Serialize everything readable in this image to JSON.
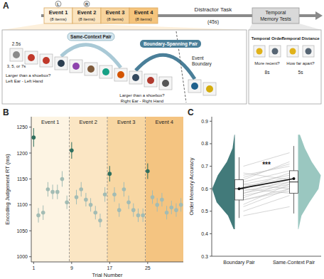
{
  "panel_labels": [
    "A",
    "B",
    "C"
  ],
  "diagram": {
    "timeline": {
      "events": [
        {
          "label": "Event 1",
          "sub": "(8 items)",
          "ear": "L"
        },
        {
          "label": "Event 2",
          "sub": "(8 items)",
          "ear": "R"
        },
        {
          "label": "Event 3",
          "sub": "(8 items)"
        },
        {
          "label": "Event 4",
          "sub": "(8 items)"
        }
      ],
      "distractor": "Distractor Task",
      "distractor_time": "(45s)",
      "tests": [
        "Temporal",
        "Memory Tests"
      ]
    },
    "encoding": {
      "same_context": "Same-Context Pair",
      "boundary_spanning": "Boundary-Spanning Pair",
      "duration": "2.5s",
      "isi": "3, 5, or 7s",
      "question_1": "Larger than a shoebox?",
      "response_1": "Left Ear - Left Hand",
      "boundary": [
        "Event",
        "Boundary"
      ],
      "question_2": "Larger than a shoebox?",
      "response_2": "Right Ear - Right Hand"
    },
    "tests": [
      {
        "title": "Temporal Order",
        "prompt": "More recent?",
        "duration": "8s"
      },
      {
        "title": "Temporal Distance",
        "prompt": "How far apart?",
        "duration": "5s"
      }
    ]
  },
  "chart_data": [
    {
      "type": "scatter",
      "xlabel": "Trial Number",
      "ylabel": "Encoding Judgement RT (ms)",
      "x": [
        1,
        2,
        3,
        4,
        5,
        6,
        7,
        8,
        9,
        10,
        11,
        12,
        13,
        14,
        15,
        16,
        17,
        18,
        19,
        20,
        21,
        22,
        23,
        24,
        25,
        26,
        27,
        28,
        29,
        30,
        31,
        32
      ],
      "values": [
        1230,
        1080,
        1085,
        1130,
        1125,
        1125,
        1150,
        1105,
        1205,
        1115,
        1130,
        1110,
        1100,
        1085,
        1070,
        1120,
        1160,
        1120,
        1090,
        1130,
        1105,
        1090,
        1080,
        1080,
        1165,
        1115,
        1100,
        1110,
        1085,
        1095,
        1090,
        1100
      ],
      "errors": [
        18,
        14,
        14,
        14,
        14,
        14,
        15,
        13,
        16,
        14,
        14,
        13,
        13,
        13,
        13,
        14,
        15,
        14,
        13,
        14,
        13,
        13,
        13,
        13,
        15,
        13,
        13,
        13,
        13,
        13,
        13,
        13
      ],
      "colors": [
        "#2f6f5e",
        "#a3bcb4",
        "#a3bcb4",
        "#a3bcb4",
        "#a3bcb4",
        "#a3bcb4",
        "#a3bcb4",
        "#a3bcb4",
        "#2f6f5e",
        "#a3bcb4",
        "#a3bcb4",
        "#a3bcb4",
        "#a3bcb4",
        "#a3bcb4",
        "#a3bcb4",
        "#a3bcb4",
        "#2f6f5e",
        "#a3bcb4",
        "#a3bcb4",
        "#a3bcb4",
        "#a3bcb4",
        "#a3bcb4",
        "#a3bcb4",
        "#a3bcb4",
        "#2f6f5e",
        "#a3bcb4",
        "#a3bcb4",
        "#a3bcb4",
        "#a3bcb4",
        "#a3bcb4",
        "#a3bcb4",
        "#a3bcb4"
      ],
      "events": [
        {
          "label": "Event 1",
          "start": 0.5,
          "end": 8.5,
          "color": "#fdf4e3"
        },
        {
          "label": "Event 2",
          "start": 8.5,
          "end": 16.5,
          "color": "#fbe6c4"
        },
        {
          "label": "Event 3",
          "start": 16.5,
          "end": 24.5,
          "color": "#f8d7a3"
        },
        {
          "label": "Event 4",
          "start": 24.5,
          "end": 32.5,
          "color": "#f4c481"
        }
      ],
      "xlim": [
        0.5,
        32.5
      ],
      "xticks": [
        1,
        9,
        17,
        25
      ],
      "ylim": [
        990,
        1270
      ],
      "yticks": [
        1000,
        1050,
        1100,
        1150,
        1200,
        1250
      ]
    },
    {
      "type": "box",
      "ylabel": "Order Memory Accuracy",
      "categories": [
        "Boundary Pair",
        "Same-Context Pair"
      ],
      "boxes": [
        {
          "color": "#2e6b6b",
          "min": 0.47,
          "q1": 0.55,
          "median": 0.6,
          "q3": 0.64,
          "max": 0.74,
          "mean": 0.6,
          "violin_density": [
            0.05,
            0.3,
            0.8,
            1,
            0.75,
            0.35,
            0.1,
            0.02
          ]
        },
        {
          "color": "#8fc1b9",
          "min": 0.49,
          "q1": 0.58,
          "median": 0.63,
          "q3": 0.68,
          "max": 0.79,
          "mean": 0.645,
          "violin_density": [
            0.02,
            0.15,
            0.5,
            0.9,
            1,
            0.6,
            0.3,
            0.08
          ]
        }
      ],
      "violin_y": [
        0.42,
        0.48,
        0.54,
        0.6,
        0.66,
        0.72,
        0.78,
        0.84
      ],
      "subjects": [
        [
          0.55,
          0.6
        ],
        [
          0.62,
          0.66
        ],
        [
          0.58,
          0.64
        ],
        [
          0.48,
          0.52
        ],
        [
          0.66,
          0.7
        ],
        [
          0.6,
          0.58
        ],
        [
          0.53,
          0.62
        ],
        [
          0.64,
          0.72
        ],
        [
          0.57,
          0.61
        ],
        [
          0.7,
          0.76
        ],
        [
          0.5,
          0.57
        ],
        [
          0.61,
          0.65
        ],
        [
          0.59,
          0.63
        ],
        [
          0.63,
          0.68
        ],
        [
          0.55,
          0.59
        ],
        [
          0.67,
          0.64
        ],
        [
          0.52,
          0.6
        ],
        [
          0.6,
          0.67
        ],
        [
          0.58,
          0.62
        ],
        [
          0.65,
          0.71
        ],
        [
          0.62,
          0.6
        ],
        [
          0.56,
          0.63
        ]
      ],
      "annotation": "***",
      "ylim": [
        0.3,
        0.92
      ],
      "yticks": [
        0.3,
        0.4,
        0.5,
        0.6,
        0.7,
        0.8,
        0.9
      ]
    }
  ]
}
